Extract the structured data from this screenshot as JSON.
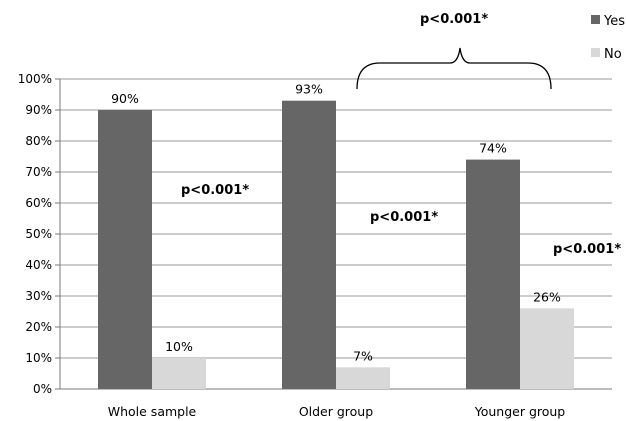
{
  "chart_data": {
    "type": "bar",
    "categories": [
      "Whole sample",
      "Older group",
      "Younger group"
    ],
    "series": [
      {
        "name": "Yes",
        "values": [
          90,
          93,
          74
        ],
        "labels": [
          "90%",
          "93%",
          "74%"
        ],
        "color": "#666666"
      },
      {
        "name": "No",
        "values": [
          10,
          7,
          26
        ],
        "labels": [
          "10%",
          "7%",
          "26%"
        ],
        "color": "#d8d8d8"
      }
    ],
    "yticks": [
      "0%",
      "10%",
      "20%",
      "30%",
      "40%",
      "50%",
      "60%",
      "70%",
      "80%",
      "90%",
      "100%"
    ],
    "ylim": [
      0,
      100
    ],
    "grid": true,
    "legend": "top-right",
    "annotations": {
      "between_groups": "p<0.001*",
      "whole_sample": "p<0.001*",
      "older_group": "p<0.001*",
      "younger_group": "p<0.001*"
    }
  }
}
